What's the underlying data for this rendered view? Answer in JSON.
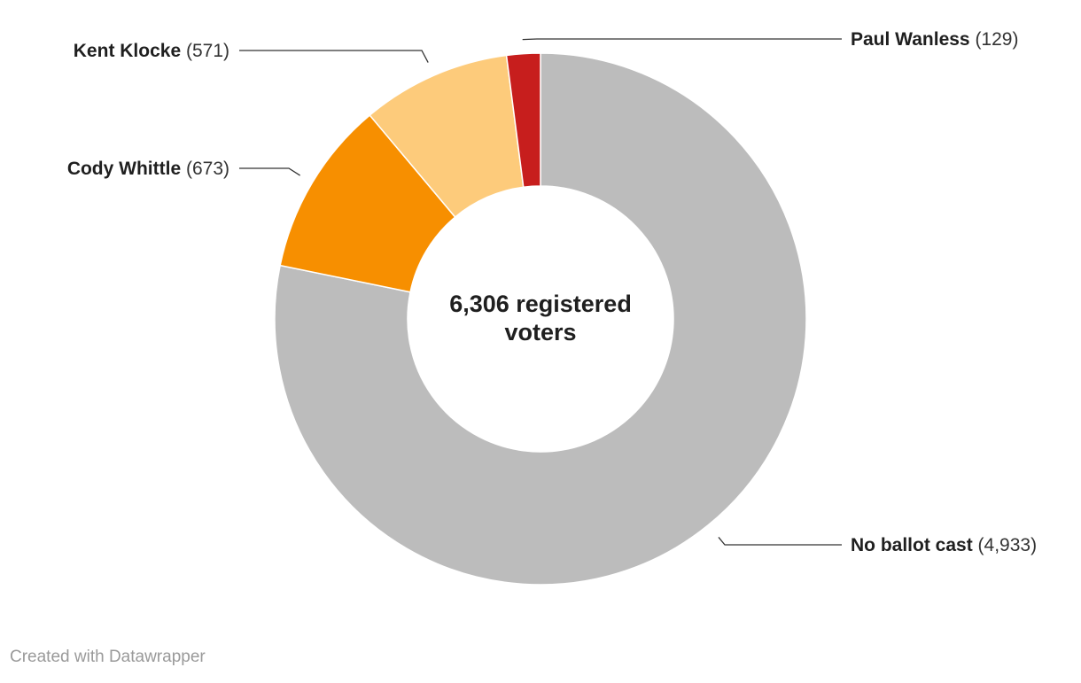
{
  "chart_data": {
    "type": "pie",
    "variant": "donut",
    "center_label": [
      "6,306 registered",
      "voters"
    ],
    "slices": [
      {
        "label": "No ballot cast",
        "value": 4933,
        "value_label": "(4,933)",
        "color": "#bcbcbc"
      },
      {
        "label": "Cody Whittle",
        "value": 673,
        "value_label": "(673)",
        "color": "#f78f00"
      },
      {
        "label": "Kent Klocke",
        "value": 571,
        "value_label": "(571)",
        "color": "#fdcb7b"
      },
      {
        "label": "Paul Wanless",
        "value": 129,
        "value_label": "(129)",
        "color": "#c71e1d"
      }
    ]
  },
  "footer": {
    "credit": "Created with Datawrapper"
  }
}
